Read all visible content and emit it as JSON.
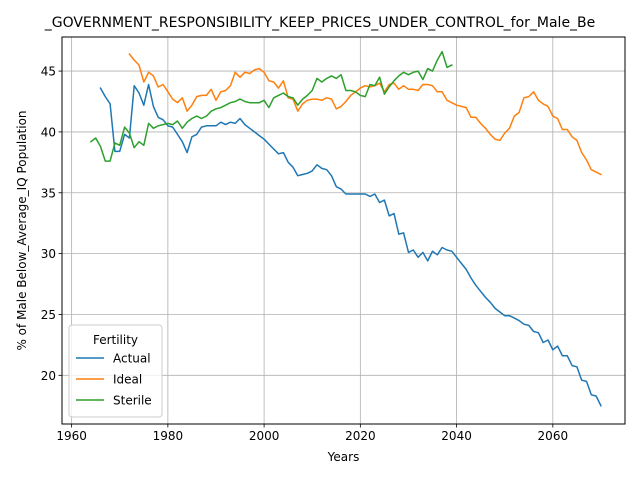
{
  "chart_data": {
    "type": "line",
    "title": "_GOVERNMENT_RESPONSIBILITY_KEEP_PRICES_UNDER_CONTROL_for_Male_Be",
    "xlabel": "Years",
    "ylabel": "% of Male Below_Average_IQ Population",
    "xlim": [
      1958,
      2075
    ],
    "ylim": [
      16.0,
      47.8
    ],
    "x_ticks": [
      1960,
      1980,
      2000,
      2020,
      2040,
      2060
    ],
    "y_ticks": [
      20,
      25,
      30,
      35,
      40,
      45
    ],
    "grid": true,
    "legend": {
      "title": "Fertility",
      "placement": "lower-left"
    },
    "series": [
      {
        "name": "Actual",
        "color": "#1f77b4",
        "x": [
          1966,
          1967,
          1968,
          1969,
          1970,
          1971,
          1972,
          1973,
          1974,
          1975,
          1976,
          1977,
          1978,
          1979,
          1980,
          1981,
          1982,
          1983,
          1984,
          1985,
          1986,
          1987,
          1988,
          1989,
          1990,
          1991,
          1992,
          1993,
          1994,
          1995,
          1996,
          1997,
          1998,
          1999,
          2000,
          2001,
          2002,
          2003,
          2004,
          2005,
          2006,
          2007,
          2008,
          2009,
          2010,
          2011,
          2012,
          2013,
          2014,
          2015,
          2016,
          2017,
          2018,
          2019,
          2020,
          2021,
          2022,
          2023,
          2024,
          2025,
          2026,
          2027,
          2028,
          2029,
          2030,
          2031,
          2032,
          2033,
          2034,
          2035,
          2036,
          2037,
          2038,
          2039,
          2040,
          2041,
          2042,
          2043,
          2044,
          2045,
          2046,
          2047,
          2048,
          2049,
          2050,
          2051,
          2052,
          2053,
          2054,
          2055,
          2056,
          2057,
          2058,
          2059,
          2060,
          2061,
          2062,
          2063,
          2064,
          2065,
          2066,
          2067,
          2068,
          2069,
          2070
        ],
        "y": [
          43.6,
          42.9,
          42.3,
          38.4,
          38.4,
          39.8,
          39.5,
          43.8,
          43.2,
          42.2,
          43.9,
          42.1,
          41.2,
          41.0,
          40.5,
          40.4,
          39.8,
          39.2,
          38.3,
          39.6,
          39.8,
          40.4,
          40.5,
          40.5,
          40.5,
          40.8,
          40.6,
          40.8,
          40.7,
          41.1,
          40.6,
          40.3,
          40.0,
          39.7,
          39.4,
          39.0,
          38.6,
          38.2,
          38.3,
          37.5,
          37.1,
          36.4,
          36.5,
          36.6,
          36.8,
          37.3,
          37.0,
          36.9,
          36.4,
          35.5,
          35.3,
          34.9,
          34.9,
          34.9,
          34.9,
          34.9,
          34.7,
          34.9,
          34.2,
          34.4,
          33.1,
          33.3,
          31.6,
          31.7,
          30.1,
          30.3,
          29.7,
          30.1,
          29.4,
          30.2,
          29.9,
          30.5,
          30.3,
          30.2,
          29.7,
          29.2,
          28.7,
          28.0,
          27.4,
          26.9,
          26.4,
          26.0,
          25.5,
          25.2,
          24.9,
          24.9,
          24.7,
          24.5,
          24.2,
          24.1,
          23.6,
          23.5,
          22.7,
          22.9,
          22.1,
          22.4,
          21.6,
          21.6,
          20.8,
          20.7,
          19.6,
          19.5,
          18.4,
          18.3,
          17.5
        ]
      },
      {
        "name": "Ideal",
        "color": "#ff7f0e",
        "x": [
          1972,
          1973,
          1974,
          1975,
          1976,
          1977,
          1978,
          1979,
          1980,
          1981,
          1982,
          1983,
          1984,
          1985,
          1986,
          1987,
          1988,
          1989,
          1990,
          1991,
          1992,
          1993,
          1994,
          1995,
          1996,
          1997,
          1998,
          1999,
          2000,
          2001,
          2002,
          2003,
          2004,
          2005,
          2006,
          2007,
          2008,
          2009,
          2010,
          2011,
          2012,
          2013,
          2014,
          2015,
          2016,
          2017,
          2018,
          2019,
          2020,
          2021,
          2022,
          2023,
          2024,
          2025,
          2026,
          2027,
          2028,
          2029,
          2030,
          2031,
          2032,
          2033,
          2034,
          2035,
          2036,
          2037,
          2038,
          2039,
          2040,
          2041,
          2042,
          2043,
          2044,
          2045,
          2046,
          2047,
          2048,
          2049,
          2050,
          2051,
          2052,
          2053,
          2054,
          2055,
          2056,
          2057,
          2058,
          2059,
          2060,
          2061,
          2062,
          2063,
          2064,
          2065,
          2066,
          2067,
          2068,
          2069,
          2070
        ],
        "y": [
          46.4,
          45.9,
          45.5,
          44.1,
          44.9,
          44.6,
          43.7,
          43.9,
          43.3,
          42.7,
          42.4,
          42.8,
          41.7,
          42.2,
          42.9,
          43.0,
          43.0,
          43.5,
          42.6,
          43.3,
          43.4,
          43.8,
          44.9,
          44.5,
          44.9,
          44.8,
          45.1,
          45.2,
          44.9,
          44.2,
          44.1,
          43.6,
          44.2,
          42.8,
          42.7,
          41.7,
          42.3,
          42.6,
          42.7,
          42.7,
          42.6,
          42.8,
          42.7,
          41.9,
          42.1,
          42.5,
          43.0,
          43.3,
          43.6,
          43.8,
          43.7,
          43.8,
          44.0,
          43.3,
          43.9,
          44.0,
          43.5,
          43.8,
          43.5,
          43.5,
          43.4,
          43.9,
          43.9,
          43.8,
          43.3,
          43.3,
          42.6,
          42.4,
          42.2,
          42.1,
          42.0,
          41.2,
          41.2,
          40.7,
          40.3,
          39.8,
          39.4,
          39.3,
          39.9,
          40.3,
          41.3,
          41.6,
          42.8,
          42.9,
          43.3,
          42.6,
          42.3,
          42.1,
          41.3,
          41.1,
          40.2,
          40.2,
          39.6,
          39.3,
          38.3,
          37.7,
          36.9,
          36.7,
          36.5
        ]
      },
      {
        "name": "Sterile",
        "color": "#2ca02c",
        "x": [
          1964,
          1965,
          1966,
          1967,
          1968,
          1969,
          1970,
          1971,
          1972,
          1973,
          1974,
          1975,
          1976,
          1977,
          1978,
          1979,
          1980,
          1981,
          1982,
          1983,
          1984,
          1985,
          1986,
          1987,
          1988,
          1989,
          1990,
          1991,
          1992,
          1993,
          1994,
          1995,
          1996,
          1997,
          1998,
          1999,
          2000,
          2001,
          2002,
          2003,
          2004,
          2005,
          2006,
          2007,
          2008,
          2009,
          2010,
          2011,
          2012,
          2013,
          2014,
          2015,
          2016,
          2017,
          2018,
          2019,
          2020,
          2021,
          2022,
          2023,
          2024,
          2025,
          2026,
          2027,
          2028,
          2029,
          2030,
          2031,
          2032,
          2033,
          2034,
          2035,
          2036,
          2037,
          2038,
          2039
        ],
        "y": [
          39.2,
          39.5,
          38.8,
          37.6,
          37.6,
          39.1,
          38.9,
          40.4,
          39.9,
          38.7,
          39.2,
          38.9,
          40.7,
          40.3,
          40.5,
          40.6,
          40.7,
          40.6,
          40.9,
          40.3,
          40.8,
          41.1,
          41.3,
          41.1,
          41.3,
          41.7,
          41.9,
          42.0,
          42.2,
          42.4,
          42.5,
          42.7,
          42.5,
          42.4,
          42.4,
          42.4,
          42.6,
          42.0,
          42.8,
          43.0,
          43.2,
          42.9,
          42.8,
          42.2,
          42.7,
          43.0,
          43.4,
          44.4,
          44.1,
          44.4,
          44.6,
          44.4,
          44.7,
          43.4,
          43.4,
          43.3,
          43.0,
          42.9,
          43.9,
          43.8,
          44.5,
          43.1,
          43.7,
          44.2,
          44.6,
          44.9,
          44.7,
          44.9,
          45.0,
          44.3,
          45.2,
          45.0,
          45.9,
          46.6,
          45.3,
          45.5
        ]
      }
    ]
  }
}
